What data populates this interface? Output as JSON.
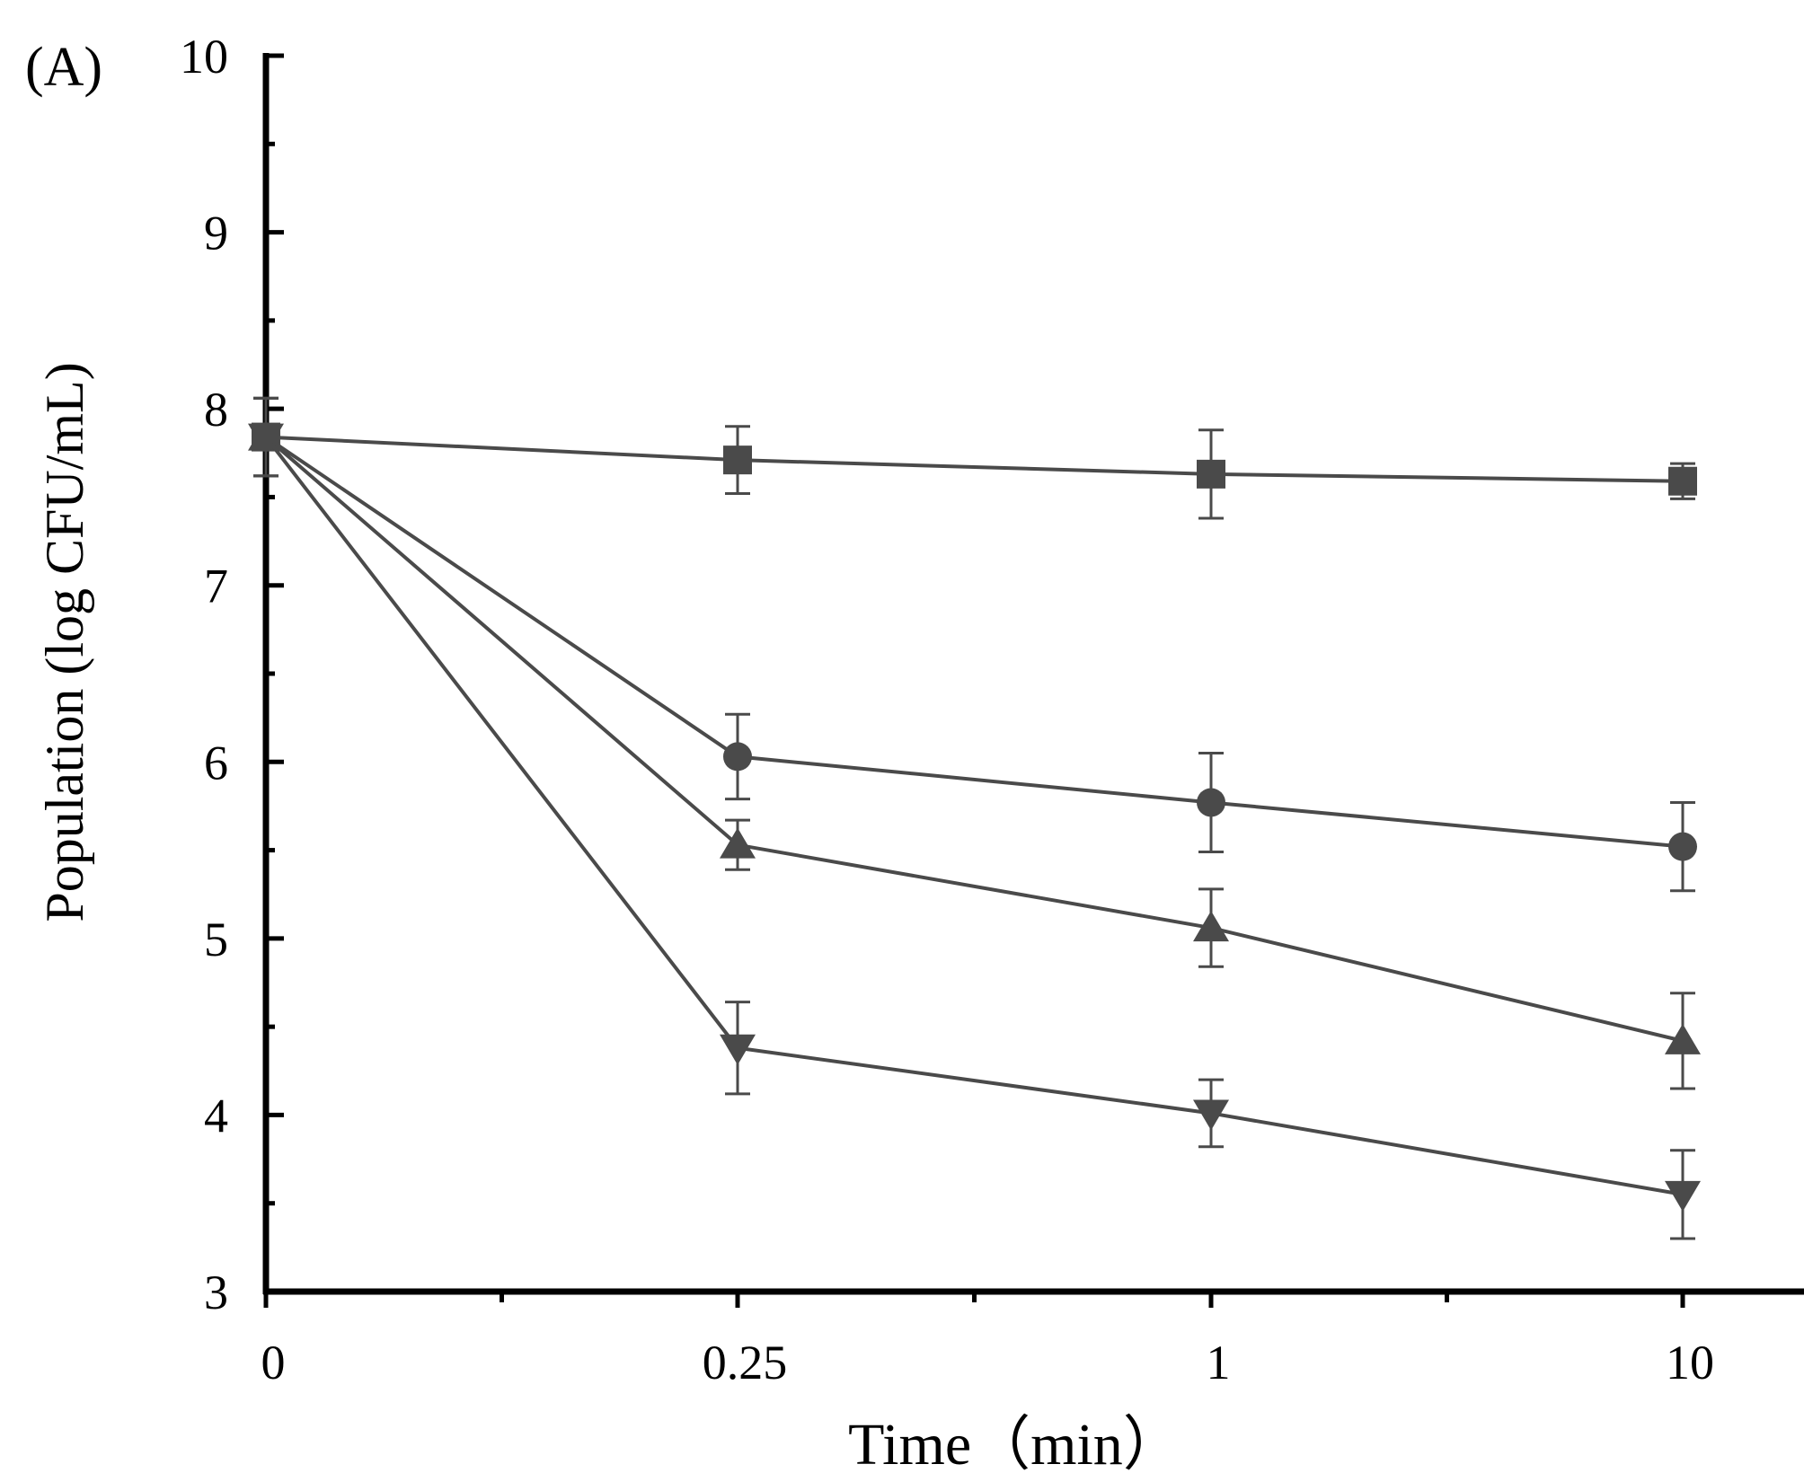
{
  "chart_data": {
    "type": "line",
    "panel_label": "(A)",
    "xlabel": "Time（min）",
    "ylabel": "Population (log CFU/mL)",
    "x_categories": [
      "0",
      "0.25",
      "1",
      "10"
    ],
    "ylim": [
      3,
      10
    ],
    "y_ticks": [
      3,
      4,
      5,
      6,
      7,
      8,
      9,
      10
    ],
    "grid": false,
    "series": [
      {
        "name": "square",
        "marker": "square",
        "values": [
          7.84,
          7.71,
          7.63,
          7.59
        ],
        "errors": [
          0.22,
          0.19,
          0.25,
          0.1
        ]
      },
      {
        "name": "circle",
        "marker": "circle",
        "values": [
          7.84,
          6.03,
          5.77,
          5.52
        ],
        "errors": [
          0.22,
          0.24,
          0.28,
          0.25
        ]
      },
      {
        "name": "triangle",
        "marker": "triangle-up",
        "values": [
          7.84,
          5.53,
          5.06,
          4.42
        ],
        "errors": [
          0.22,
          0.14,
          0.22,
          0.27
        ]
      },
      {
        "name": "inverted",
        "marker": "triangle-down",
        "values": [
          7.84,
          4.38,
          4.01,
          3.55
        ],
        "errors": [
          0.22,
          0.26,
          0.19,
          0.25
        ]
      }
    ],
    "colors": {
      "axis": "#000000",
      "series": "#4a4a4a"
    }
  }
}
